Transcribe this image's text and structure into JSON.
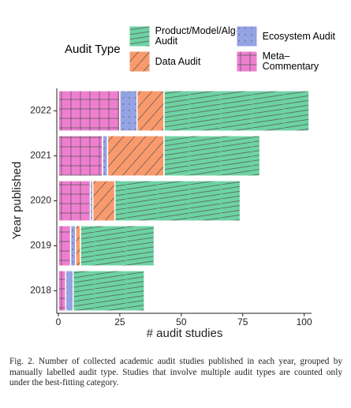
{
  "chart_data": {
    "type": "bar",
    "orientation": "horizontal",
    "stacked": true,
    "legend_title": "Audit Type",
    "xlabel": "# audit studies",
    "ylabel": "Year published",
    "categories": [
      "2022",
      "2021",
      "2020",
      "2019",
      "2018"
    ],
    "series": [
      {
        "name": "Product/Model/Algo. Audit",
        "color": "#6dd3a3",
        "values": [
          59,
          39,
          51,
          30,
          29
        ]
      },
      {
        "name": "Data Audit",
        "color": "#f99a6c",
        "values": [
          11,
          23,
          9,
          2,
          0
        ]
      },
      {
        "name": "Ecosystem Audit",
        "color": "#94a3e3",
        "values": [
          7,
          2,
          1,
          2,
          3
        ]
      },
      {
        "name": "Meta–Commentary",
        "color": "#ee7fd0",
        "values": [
          25,
          18,
          13,
          5,
          3
        ]
      }
    ],
    "xlim": [
      0,
      103
    ],
    "xticks": [
      0,
      25,
      50,
      75,
      100
    ]
  },
  "caption": "Fig. 2.  Number of collected academic audit studies published in each year, grouped by manually labelled audit type. Studies that involve multiple audit types are counted only under the best-fitting category."
}
